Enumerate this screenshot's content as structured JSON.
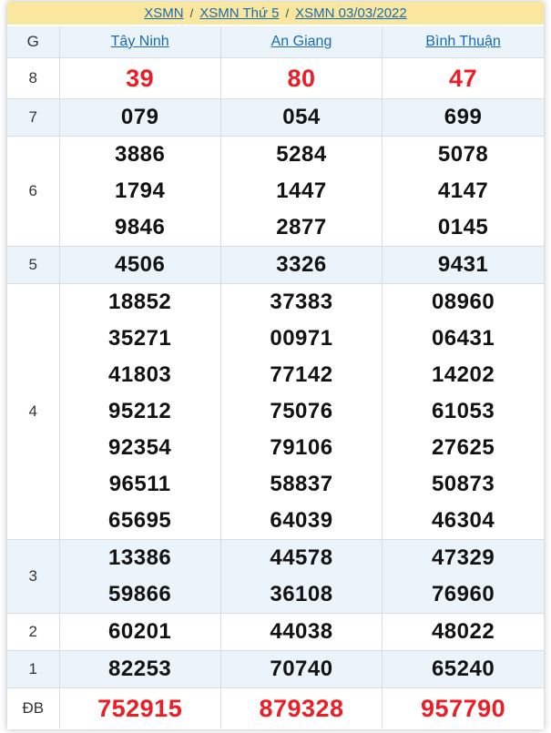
{
  "breadcrumb": {
    "links": [
      "XSMN",
      "XSMN Thứ 5",
      "XSMN 03/03/2022"
    ],
    "separator": "/"
  },
  "table": {
    "corner_label": "G",
    "provinces": [
      "Tây Ninh",
      "An Giang",
      "Bình Thuận"
    ],
    "rows": [
      {
        "label": "8",
        "highlight": true,
        "cells": [
          [
            "39"
          ],
          [
            "80"
          ],
          [
            "47"
          ]
        ]
      },
      {
        "label": "7",
        "highlight": false,
        "cells": [
          [
            "079"
          ],
          [
            "054"
          ],
          [
            "699"
          ]
        ]
      },
      {
        "label": "6",
        "highlight": false,
        "cells": [
          [
            "3886",
            "1794",
            "9846"
          ],
          [
            "5284",
            "1447",
            "2877"
          ],
          [
            "5078",
            "4147",
            "0145"
          ]
        ]
      },
      {
        "label": "5",
        "highlight": false,
        "cells": [
          [
            "4506"
          ],
          [
            "3326"
          ],
          [
            "9431"
          ]
        ]
      },
      {
        "label": "4",
        "highlight": false,
        "cells": [
          [
            "18852",
            "35271",
            "41803",
            "95212",
            "92354",
            "96511",
            "65695"
          ],
          [
            "37383",
            "00971",
            "77142",
            "75076",
            "79106",
            "58837",
            "64039"
          ],
          [
            "08960",
            "06431",
            "14202",
            "61053",
            "27625",
            "50873",
            "46304"
          ]
        ]
      },
      {
        "label": "3",
        "highlight": false,
        "cells": [
          [
            "13386",
            "59866"
          ],
          [
            "44578",
            "36108"
          ],
          [
            "47329",
            "76960"
          ]
        ]
      },
      {
        "label": "2",
        "highlight": false,
        "cells": [
          [
            "60201"
          ],
          [
            "44038"
          ],
          [
            "48022"
          ]
        ]
      },
      {
        "label": "1",
        "highlight": false,
        "cells": [
          [
            "82253"
          ],
          [
            "70740"
          ],
          [
            "65240"
          ]
        ]
      },
      {
        "label": "ĐB",
        "highlight": true,
        "cells": [
          [
            "752915"
          ],
          [
            "879328"
          ],
          [
            "957790"
          ]
        ]
      }
    ]
  },
  "colors": {
    "yellow_band": "#fae79f",
    "stripe_blue": "#ecf4fb",
    "link_blue": "#1a6ab3",
    "number_red": "#ee1c25",
    "border": "#dadde0"
  }
}
